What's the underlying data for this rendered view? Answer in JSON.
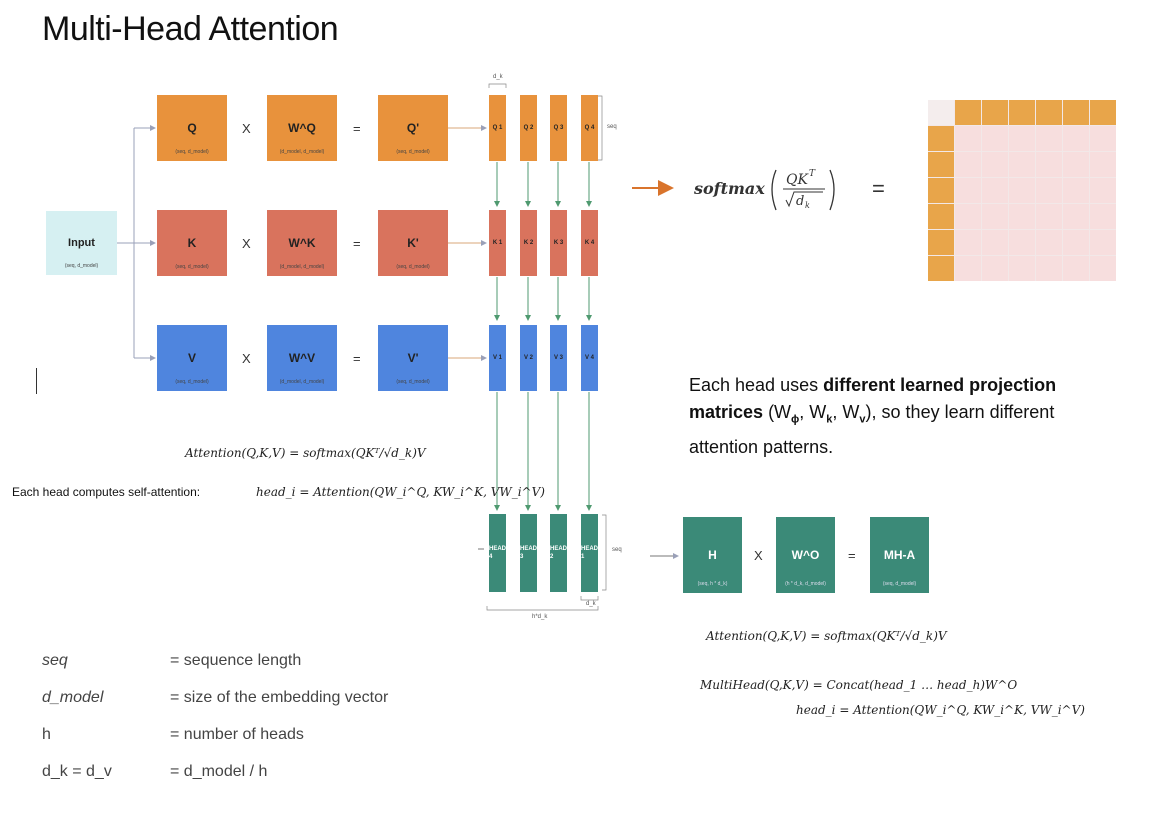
{
  "title": "Multi-Head Attention",
  "input": {
    "label": "Input",
    "dims": "(seq, d_model)"
  },
  "rows": [
    {
      "name": "q",
      "a": "Q",
      "a_dims": "(seq, d_model)",
      "w": "W^Q",
      "w_dims": "(d_model, d_model)",
      "out": "Q'",
      "out_dims": "(seq, d_model)",
      "color": "#e8923c",
      "heads": [
        "Q 1",
        "Q 2",
        "Q 3",
        "Q 4"
      ]
    },
    {
      "name": "k",
      "a": "K",
      "a_dims": "(seq, d_model)",
      "w": "W^K",
      "w_dims": "(d_model, d_model)",
      "out": "K'",
      "out_dims": "(seq, d_model)",
      "color": "#d9735d",
      "heads": [
        "K 1",
        "K 2",
        "K 3",
        "K 4"
      ]
    },
    {
      "name": "v",
      "a": "V",
      "a_dims": "(seq, d_model)",
      "w": "W^V",
      "w_dims": "(d_model, d_model)",
      "out": "V'",
      "out_dims": "(seq, d_model)",
      "color": "#4f85de",
      "heads": [
        "V 1",
        "V 2",
        "V 3",
        "V 4"
      ]
    }
  ],
  "ops": {
    "times": "X",
    "equals": "="
  },
  "dk_label": "d_k",
  "seq_label": "seq",
  "head_strips": [
    "HEAD 4",
    "HEAD 3",
    "HEAD 2",
    "HEAD 1"
  ],
  "head_seq_label": "seq",
  "head_dk_label": "d_k",
  "head_bottom_label": "h*d_k",
  "softmax_expr": "softmax(QKᵀ / √d_k)",
  "softmax_equals": "=",
  "final": {
    "h": "H",
    "h_dims": "(seq, h * d_k)",
    "wo": "W^O",
    "wo_dims": "(h * d_k, d_model)",
    "mha": "MH-A",
    "mha_dims": "(seq, d_model)"
  },
  "formula_left_attention": "Attention(Q,K,V) = softmax(QKᵀ/√d_k)V",
  "formula_left_head_prefix": "Each head computes self-attention:",
  "formula_left_head": "head_i = Attention(QW_i^Q, KW_i^K, VW_i^V)",
  "formula_right_attention": "Attention(Q,K,V) = softmax(QKᵀ/√d_k)V",
  "formula_right_multihead": "MultiHead(Q,K,V) = Concat(head_1 … head_h)W^O",
  "formula_right_head": "head_i = Attention(QW_i^Q, KW_i^K, VW_i^V)",
  "note": {
    "pre": "Each head uses ",
    "bold": "different learned projection matrices",
    "mid": " (W",
    "phi": "ϕ",
    "c1": ", W",
    "k": "k",
    "c2": ", W",
    "v": "v",
    "post": "), so they learn different attention patterns."
  },
  "legend": [
    {
      "sym": "seq",
      "def": "= sequence length"
    },
    {
      "sym": "d_model",
      "def": "= size of the embedding vector"
    },
    {
      "sym": "h",
      "def": "= number of heads"
    },
    {
      "sym": "d_k = d_v",
      "def": "= d_model / h"
    }
  ],
  "colors": {
    "orange": "#e8923c",
    "red": "#d9735d",
    "blue": "#4f85de",
    "teal": "#3b8a78",
    "input": "#d6f0f2",
    "arrow": "#9aa0b8",
    "softmax_arrow": "#d9742c",
    "strip_arrow": "#4f9a70"
  }
}
